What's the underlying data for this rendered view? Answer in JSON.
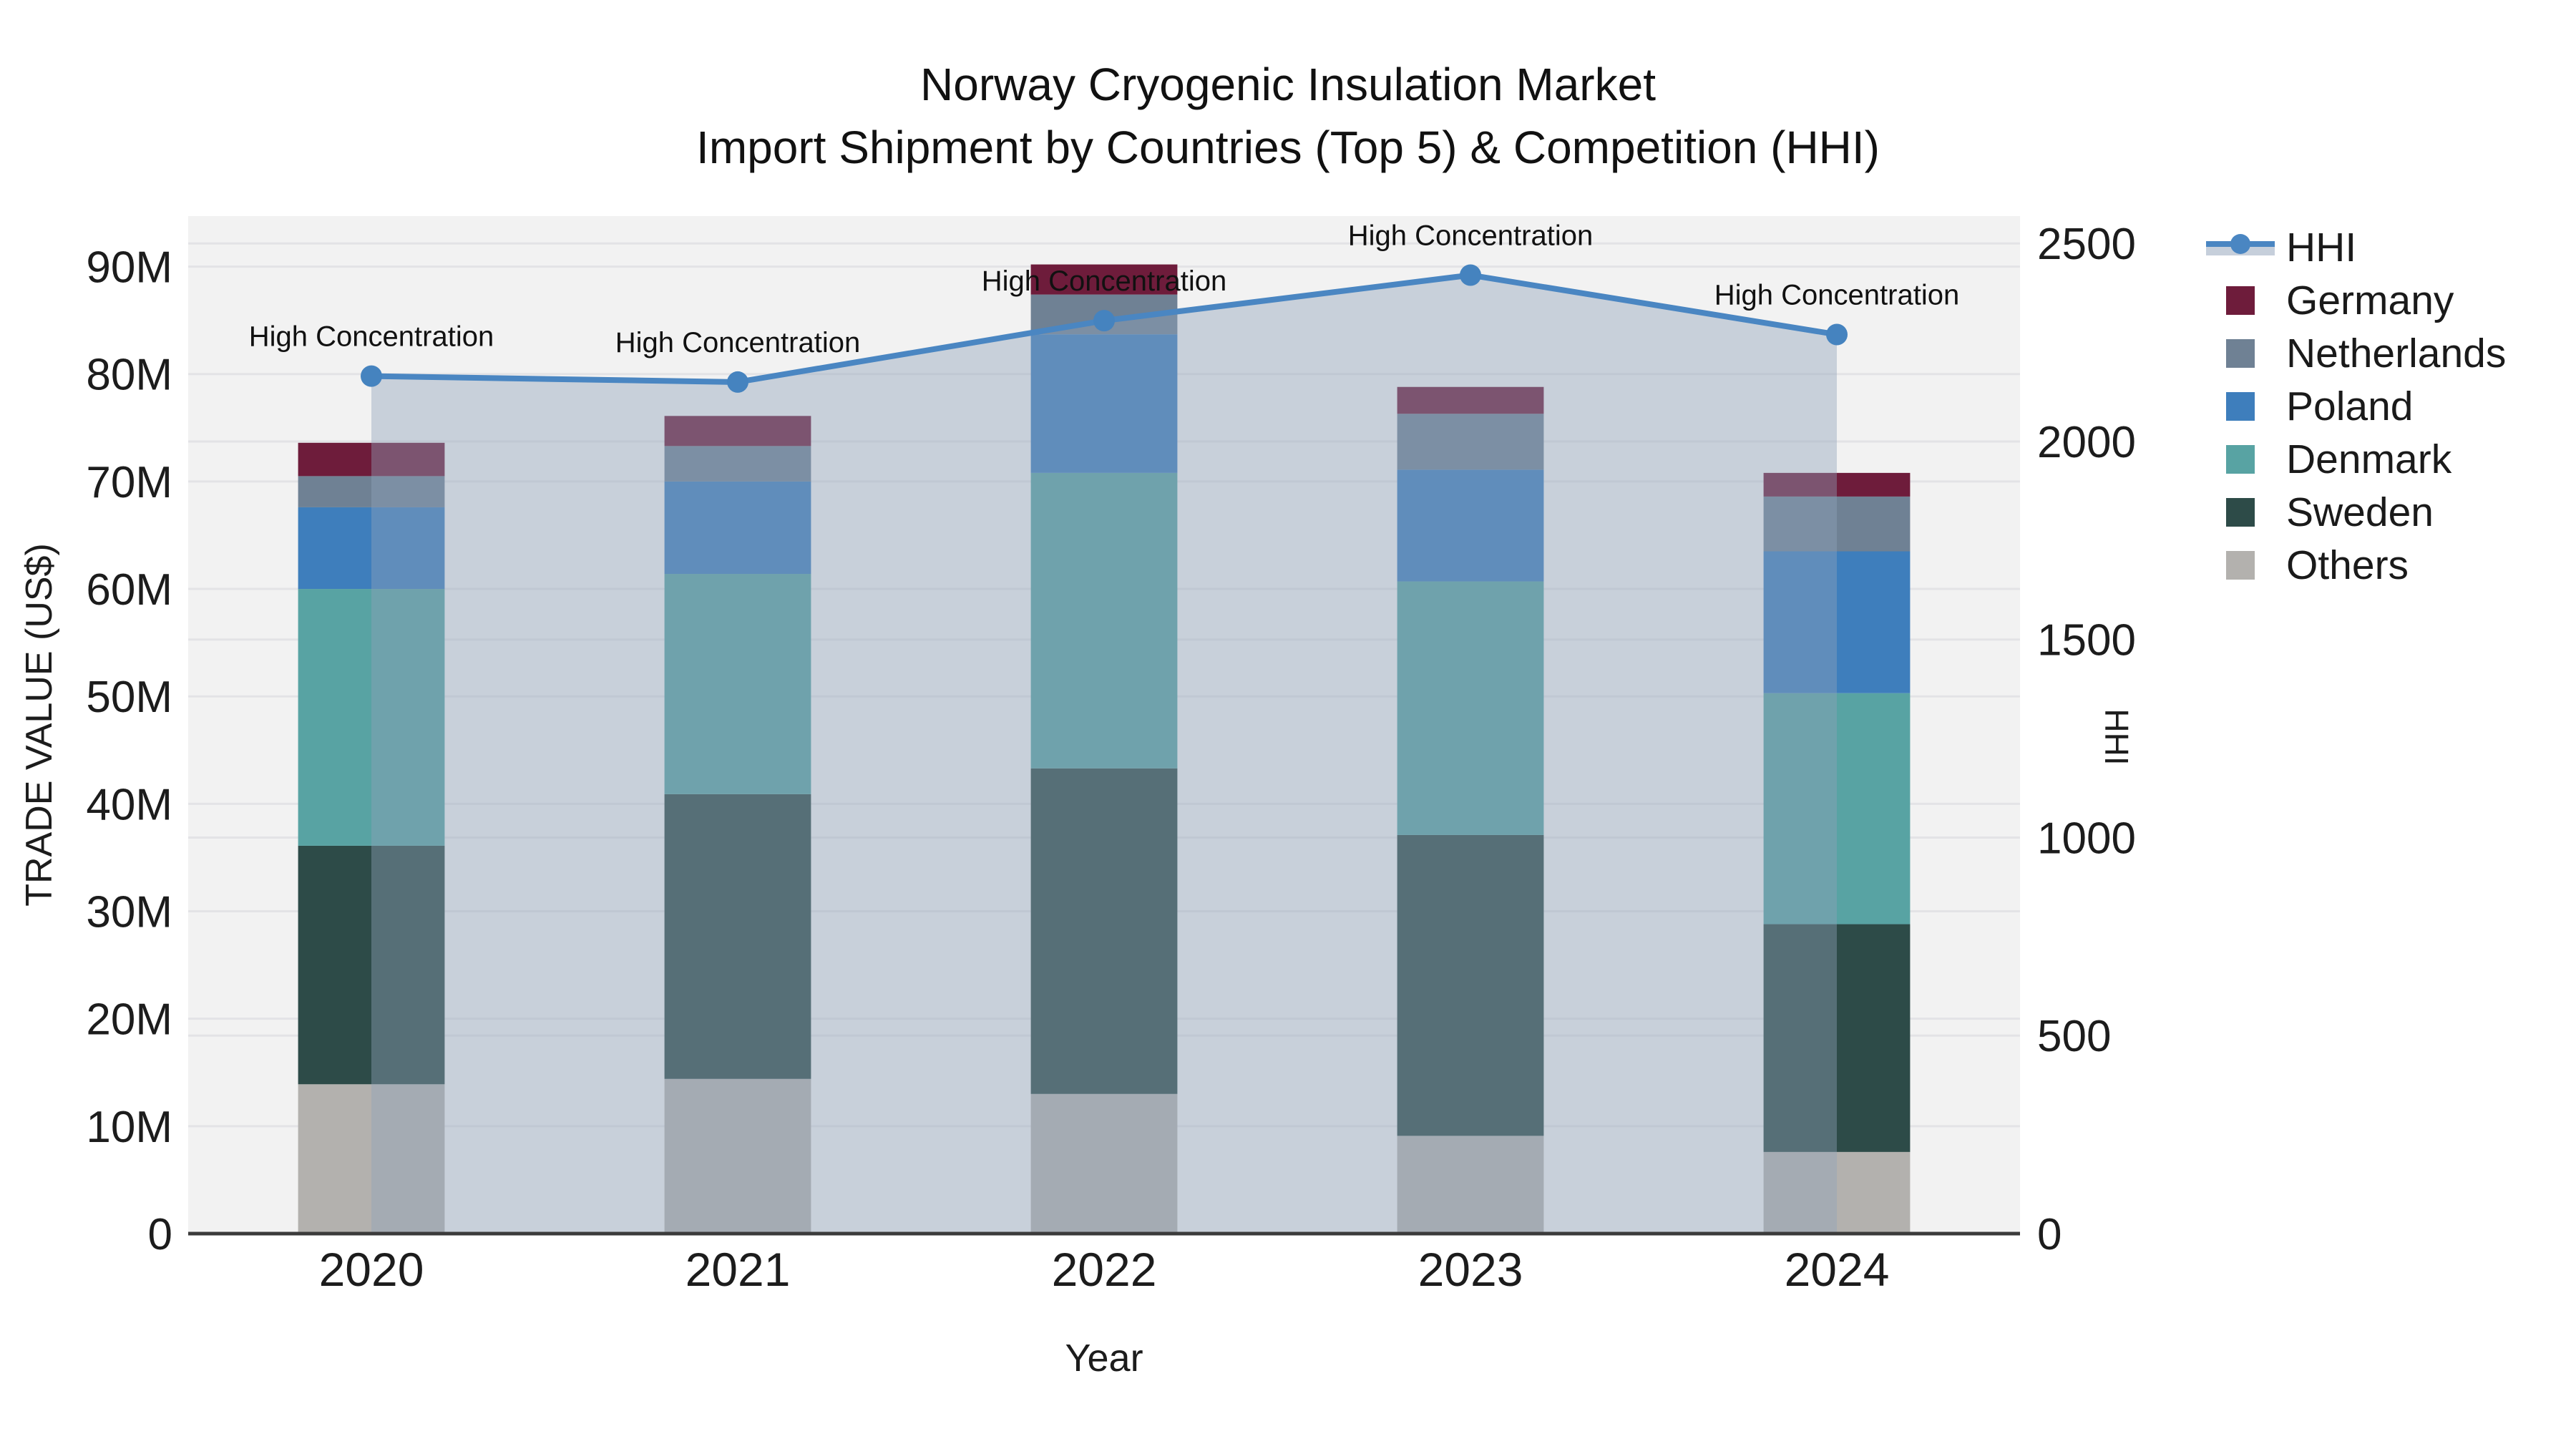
{
  "title": {
    "line1": "Norway Cryogenic Insulation Market",
    "line2": "Import Shipment by Countries (Top 5) & Competition (HHI)"
  },
  "axes": {
    "x_title": "Year",
    "y_left_title": "TRADE VALUE (US$)",
    "y_right_title": "HHI",
    "y_left": {
      "max": 94.7,
      "ticks": [
        {
          "v": 0,
          "label": "0"
        },
        {
          "v": 10,
          "label": "10M"
        },
        {
          "v": 20,
          "label": "20M"
        },
        {
          "v": 30,
          "label": "30M"
        },
        {
          "v": 40,
          "label": "40M"
        },
        {
          "v": 50,
          "label": "50M"
        },
        {
          "v": 60,
          "label": "60M"
        },
        {
          "v": 70,
          "label": "70M"
        },
        {
          "v": 80,
          "label": "80M"
        },
        {
          "v": 90,
          "label": "90M"
        }
      ]
    },
    "y_right": {
      "max": 2569,
      "ticks": [
        {
          "v": 0,
          "label": "0"
        },
        {
          "v": 500,
          "label": "500"
        },
        {
          "v": 1000,
          "label": "1000"
        },
        {
          "v": 1500,
          "label": "1500"
        },
        {
          "v": 2000,
          "label": "2000"
        },
        {
          "v": 2500,
          "label": "2500"
        }
      ]
    }
  },
  "chart_data": {
    "type": "bar+line",
    "title": "Norway Cryogenic Insulation Market — Import Shipment by Countries (Top 5) & Competition (HHI)",
    "xlabel": "Year",
    "ylabel_left": "TRADE VALUE (US$), millions",
    "ylabel_right": "HHI",
    "ylim_left": [
      0,
      94.7
    ],
    "ylim_right": [
      0,
      2569
    ],
    "grid": true,
    "legend_position": "right",
    "categories": [
      "2020",
      "2021",
      "2022",
      "2023",
      "2024"
    ],
    "stack_series_bottom_to_top": [
      {
        "name": "Others",
        "color": "#b3b1ae",
        "values": [
          13.9,
          14.4,
          13.0,
          9.1,
          7.6
        ]
      },
      {
        "name": "Sweden",
        "color": "#2d4b48",
        "values": [
          22.2,
          26.5,
          30.3,
          28.0,
          21.2
        ]
      },
      {
        "name": "Denmark",
        "color": "#58a3a3",
        "values": [
          23.9,
          20.5,
          27.5,
          23.6,
          21.5
        ]
      },
      {
        "name": "Poland",
        "color": "#3e7ebc",
        "values": [
          7.6,
          8.6,
          12.9,
          10.4,
          13.2
        ]
      },
      {
        "name": "Netherlands",
        "color": "#6f8194",
        "values": [
          2.9,
          3.3,
          3.7,
          5.2,
          5.1
        ]
      },
      {
        "name": "Germany",
        "color": "#6e1c3b",
        "values": [
          3.1,
          2.8,
          2.8,
          2.5,
          2.2
        ]
      }
    ],
    "bar_totals": [
      73.6,
      76.1,
      90.2,
      78.8,
      70.8
    ],
    "line_series": {
      "name": "HHI",
      "axis": "right",
      "color": "#4a86c2",
      "marker_color": "#4583bf",
      "area_fill": "rgba(143,161,186,0.42)",
      "values": [
        2165,
        2150,
        2305,
        2420,
        2270
      ]
    },
    "annotations": [
      {
        "category": "2020",
        "text": "High Concentration"
      },
      {
        "category": "2021",
        "text": "High Concentration"
      },
      {
        "category": "2022",
        "text": "High Concentration"
      },
      {
        "category": "2023",
        "text": "High Concentration"
      },
      {
        "category": "2024",
        "text": "High Concentration"
      }
    ]
  },
  "legend": {
    "items": [
      {
        "label": "HHI",
        "type": "line",
        "color": "#4a86c2",
        "band_color": "#c6cfdb"
      },
      {
        "label": "Germany",
        "type": "square",
        "color": "#6e1c3b"
      },
      {
        "label": "Netherlands",
        "type": "square",
        "color": "#6f8194"
      },
      {
        "label": "Poland",
        "type": "square",
        "color": "#3e7ebc"
      },
      {
        "label": "Denmark",
        "type": "square",
        "color": "#58a3a3"
      },
      {
        "label": "Sweden",
        "type": "square",
        "color": "#2d4b48"
      },
      {
        "label": "Others",
        "type": "square",
        "color": "#b3b1ae"
      }
    ]
  },
  "palette": {
    "plot_background": "#f2f2f2",
    "gridline": "#e3e3e6",
    "bottom_spine": "#3b3b3b",
    "text": "#1c1c1c"
  }
}
